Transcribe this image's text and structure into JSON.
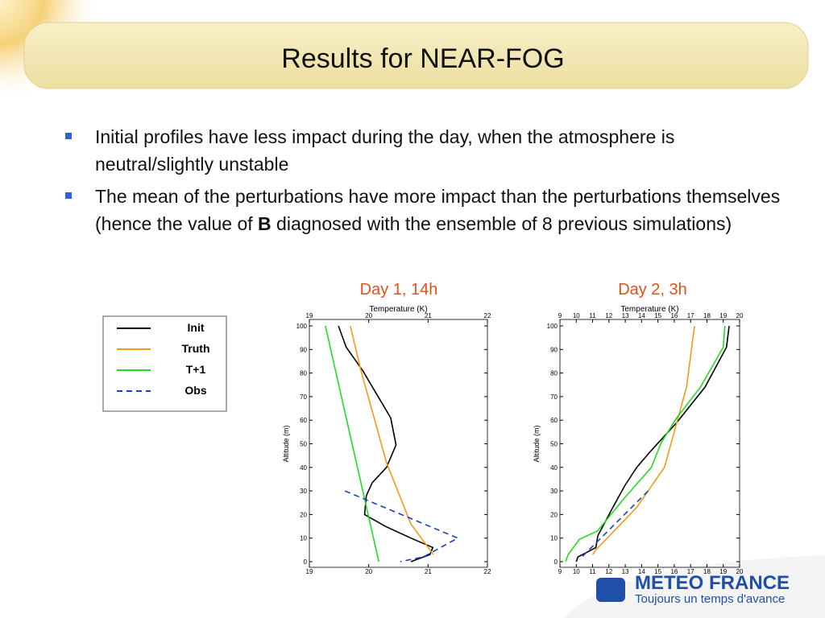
{
  "title": "Results for NEAR-FOG",
  "bullets": [
    [
      "Initial profiles have less impact during the day, when the atmosphere is neutral/slightly unstable"
    ],
    [
      "The mean of the perturbations have more impact than the perturbations themselves (hence the value of ",
      "B",
      " diagnosed with the ensemble of 8 previous simulations)"
    ]
  ],
  "logo": {
    "name": "METEO FRANCE",
    "slogan": "Toujours un temps d'avance"
  },
  "chart_data": [
    {
      "type": "line",
      "title": "Day 1, 14h",
      "xlabel": "Temperature (K)",
      "ylabel": "Altitude (m)",
      "xlim": [
        19,
        22
      ],
      "xticks": [
        19,
        20,
        21,
        22
      ],
      "ylim": [
        0,
        100
      ],
      "yticks": [
        0,
        10,
        20,
        30,
        40,
        50,
        60,
        70,
        80,
        90,
        100
      ],
      "series": [
        {
          "name": "Init",
          "color": "#000000",
          "x": [
            19.49,
            19.62,
            19.9,
            20.37,
            20.46,
            20.3,
            20.06,
            19.96,
            19.93,
            20.28,
            20.71,
            21.08,
            21.03,
            20.71
          ],
          "y": [
            100,
            91,
            81,
            61,
            49.5,
            40,
            33.5,
            28,
            20,
            15,
            10,
            6,
            3,
            0
          ]
        },
        {
          "name": "Truth",
          "color": "#f59a12",
          "x": [
            19.69,
            19.87,
            20.3,
            20.71,
            21.09
          ],
          "y": [
            100,
            81,
            42,
            16,
            3
          ]
        },
        {
          "name": "T+1",
          "color": "#22dd22",
          "x": [
            19.27,
            20.17
          ],
          "y": [
            100,
            0
          ]
        },
        {
          "name": "Obs",
          "color": "#1a3fd0",
          "dashed": true,
          "x": [
            19.6,
            21.5,
            20.92,
            20.53
          ],
          "y": [
            30,
            10,
            2,
            0
          ]
        }
      ]
    },
    {
      "type": "line",
      "title": "Day 2, 3h",
      "xlabel": "Temperature (K)",
      "ylabel": "Altitude (m)",
      "xlim": [
        9,
        20
      ],
      "xticks": [
        9,
        10,
        11,
        12,
        13,
        14,
        15,
        16,
        17,
        18,
        19,
        20
      ],
      "ylim": [
        0,
        100
      ],
      "yticks": [
        0,
        10,
        20,
        30,
        40,
        50,
        60,
        70,
        80,
        90,
        100
      ],
      "series": [
        {
          "name": "Init",
          "color": "#000000",
          "x": [
            19.36,
            19.2,
            17.88,
            16.15,
            14.57,
            13.7,
            12.95,
            12.2,
            11.32,
            11.2,
            10.1,
            10
          ],
          "y": [
            100,
            91,
            74,
            59,
            47,
            40,
            32,
            22.5,
            11,
            6,
            2,
            0
          ]
        },
        {
          "name": "Truth",
          "color": "#f59a12",
          "x": [
            17.24,
            16.75,
            15.4,
            14.9,
            13.7,
            11.2,
            11
          ],
          "y": [
            100,
            74,
            40,
            35,
            23,
            5,
            3
          ]
        },
        {
          "name": "T+1",
          "color": "#22dd22",
          "x": [
            19.1,
            19,
            17.6,
            16.15,
            15.2,
            14.6,
            12.95,
            11.3,
            10.2,
            9.5,
            9.35
          ],
          "y": [
            100,
            91,
            74,
            61,
            50.5,
            40,
            27,
            13,
            9.5,
            3,
            0
          ]
        },
        {
          "name": "Obs",
          "color": "#1a3fd0",
          "dashed": true,
          "x": [
            14.4,
            10.2
          ],
          "y": [
            30,
            1
          ]
        }
      ]
    }
  ]
}
